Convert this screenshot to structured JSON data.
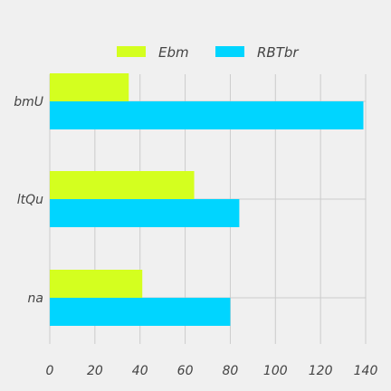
{
  "chart_data": {
    "type": "bar",
    "orientation": "horizontal",
    "categories": [
      "bmU",
      "ltQu",
      "na"
    ],
    "series": [
      {
        "name": "Ebm",
        "values": [
          35,
          64,
          41
        ],
        "color": "#d4ff1f"
      },
      {
        "name": "RBTbr",
        "values": [
          139,
          84,
          80
        ],
        "color": "#00d5ff"
      }
    ],
    "x_ticks": [
      0,
      20,
      40,
      60,
      80,
      100,
      120,
      140
    ],
    "xlim": [
      0,
      140
    ],
    "grid": true,
    "legend_position": "top-center",
    "title": "",
    "xlabel": "",
    "ylabel": ""
  },
  "colors": {
    "background": "#f0f0f0",
    "grid": "#cbcbcb",
    "text": "#444444"
  }
}
